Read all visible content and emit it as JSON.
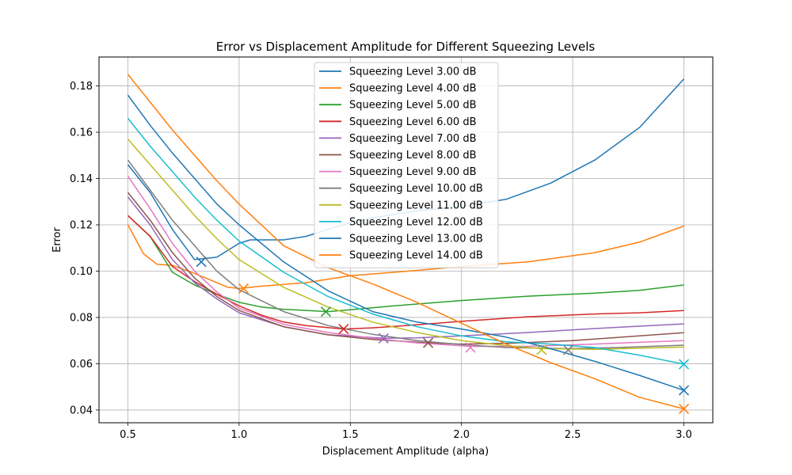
{
  "chart_data": {
    "type": "line",
    "title": "Error vs Displacement Amplitude for Different Squeezing Levels",
    "xlabel": "Displacement Amplitude (alpha)",
    "ylabel": "Error",
    "xlim": [
      0.37,
      3.13
    ],
    "ylim": [
      0.0345,
      0.1925
    ],
    "xticks": [
      "0.5",
      "1.0",
      "1.5",
      "2.0",
      "2.5",
      "3.0"
    ],
    "yticks": [
      "0.04",
      "0.06",
      "0.08",
      "0.10",
      "0.12",
      "0.14",
      "0.16",
      "0.18"
    ],
    "grid": true,
    "legend_position": "upper center",
    "marker": "x at minimum error",
    "series": [
      {
        "name": "Squeezing Level 3.00 dB",
        "color": "#1f77b4",
        "x": [
          0.5,
          0.6,
          0.7,
          0.8,
          0.9,
          1.0,
          1.05,
          1.1,
          1.2,
          1.3,
          1.4,
          1.5,
          1.6,
          1.8,
          2.0,
          2.2,
          2.4,
          2.6,
          2.8,
          3.0
        ],
        "y": [
          0.146,
          0.134,
          0.118,
          0.105,
          0.106,
          0.112,
          0.1135,
          0.1135,
          0.1135,
          0.115,
          0.118,
          0.121,
          0.123,
          0.126,
          0.128,
          0.131,
          0.138,
          0.148,
          0.162,
          0.183
        ],
        "min": [
          0.83,
          0.104
        ]
      },
      {
        "name": "Squeezing Level 4.00 dB",
        "color": "#ff7f0e",
        "x": [
          0.5,
          0.57,
          0.63,
          0.7,
          0.8,
          0.9,
          0.95,
          1.0,
          1.1,
          1.3,
          1.5,
          1.7,
          2.0,
          2.3,
          2.6,
          2.8,
          3.0
        ],
        "y": [
          0.12,
          0.1075,
          0.103,
          0.1025,
          0.099,
          0.095,
          0.093,
          0.0925,
          0.0935,
          0.095,
          0.098,
          0.0995,
          0.102,
          0.104,
          0.108,
          0.1125,
          0.1195
        ],
        "min": [
          1.02,
          0.0925
        ]
      },
      {
        "name": "Squeezing Level 5.00 dB",
        "color": "#2ca02c",
        "x": [
          0.5,
          0.6,
          0.7,
          0.8,
          0.9,
          1.0,
          1.1,
          1.2,
          1.4,
          1.5,
          1.7,
          2.0,
          2.3,
          2.6,
          2.8,
          3.0
        ],
        "y": [
          0.124,
          0.115,
          0.0995,
          0.094,
          0.09,
          0.0865,
          0.0845,
          0.0835,
          0.0825,
          0.0833,
          0.085,
          0.0873,
          0.0892,
          0.0905,
          0.0917,
          0.094
        ],
        "min": [
          1.39,
          0.0825
        ]
      },
      {
        "name": "Squeezing Level 6.00 dB",
        "color": "#d62728",
        "x": [
          0.5,
          0.6,
          0.7,
          0.8,
          0.9,
          1.0,
          1.1,
          1.2,
          1.3,
          1.47,
          1.6,
          1.8,
          2.0,
          2.3,
          2.6,
          2.8,
          3.0
        ],
        "y": [
          0.124,
          0.115,
          0.102,
          0.0955,
          0.09,
          0.085,
          0.081,
          0.078,
          0.0765,
          0.075,
          0.0755,
          0.0768,
          0.0783,
          0.0803,
          0.0815,
          0.082,
          0.083
        ],
        "min": [
          1.47,
          0.075
        ]
      },
      {
        "name": "Squeezing Level 7.00 dB",
        "color": "#9467bd",
        "x": [
          0.5,
          0.6,
          0.7,
          0.8,
          0.9,
          1.0,
          1.2,
          1.4,
          1.65,
          1.8,
          2.0,
          2.3,
          2.6,
          3.0
        ],
        "y": [
          0.132,
          0.12,
          0.105,
          0.095,
          0.088,
          0.082,
          0.076,
          0.0725,
          0.071,
          0.0712,
          0.072,
          0.0735,
          0.0752,
          0.0772
        ],
        "min": [
          1.65,
          0.071
        ]
      },
      {
        "name": "Squeezing Level 8.00 dB",
        "color": "#8c564b",
        "x": [
          0.5,
          0.6,
          0.7,
          0.8,
          0.9,
          1.0,
          1.2,
          1.4,
          1.6,
          1.85,
          2.0,
          2.2,
          2.5,
          2.8,
          3.0
        ],
        "y": [
          0.134,
          0.122,
          0.108,
          0.097,
          0.089,
          0.083,
          0.076,
          0.0725,
          0.0705,
          0.069,
          0.0685,
          0.0688,
          0.07,
          0.072,
          0.0734
        ],
        "min": [
          1.85,
          0.069
        ]
      },
      {
        "name": "Squeezing Level 9.00 dB",
        "color": "#e377c2",
        "x": [
          0.5,
          0.6,
          0.7,
          0.8,
          0.9,
          1.0,
          1.2,
          1.4,
          1.6,
          1.8,
          2.04,
          2.3,
          2.6,
          3.0
        ],
        "y": [
          0.141,
          0.127,
          0.112,
          0.1,
          0.091,
          0.084,
          0.077,
          0.0735,
          0.071,
          0.069,
          0.0675,
          0.0675,
          0.0685,
          0.07
        ],
        "min": [
          2.04,
          0.067
        ]
      },
      {
        "name": "Squeezing Level 10.00 dB",
        "color": "#7f7f7f",
        "x": [
          0.5,
          0.6,
          0.7,
          0.8,
          0.9,
          1.0,
          1.2,
          1.4,
          1.6,
          1.8,
          2.0,
          2.2,
          2.48,
          2.7,
          3.0
        ],
        "y": [
          0.148,
          0.135,
          0.122,
          0.111,
          0.1,
          0.092,
          0.0825,
          0.0765,
          0.0727,
          0.07,
          0.0683,
          0.067,
          0.0665,
          0.067,
          0.068
        ],
        "min": [
          2.48,
          0.066
        ]
      },
      {
        "name": "Squeezing Level 11.00 dB",
        "color": "#bcbd22",
        "x": [
          0.5,
          0.6,
          0.7,
          0.8,
          0.9,
          1.0,
          1.2,
          1.4,
          1.6,
          1.8,
          2.0,
          2.2,
          2.36,
          2.6,
          3.0
        ],
        "y": [
          0.157,
          0.146,
          0.135,
          0.124,
          0.114,
          0.105,
          0.093,
          0.0845,
          0.078,
          0.0735,
          0.07,
          0.0678,
          0.0665,
          0.0662,
          0.0672
        ],
        "min": [
          2.36,
          0.066
        ]
      },
      {
        "name": "Squeezing Level 12.00 dB",
        "color": "#17becf",
        "x": [
          0.5,
          0.6,
          0.7,
          0.8,
          0.9,
          1.0,
          1.2,
          1.4,
          1.6,
          1.8,
          2.0,
          2.2,
          2.4,
          2.6,
          2.8,
          3.0
        ],
        "y": [
          0.166,
          0.154,
          0.143,
          0.132,
          0.122,
          0.113,
          0.0995,
          0.089,
          0.0815,
          0.076,
          0.072,
          0.0695,
          0.0685,
          0.067,
          0.0637,
          0.0598
        ],
        "min": [
          3.0,
          0.0598
        ]
      },
      {
        "name": "Squeezing Level 13.00 dB",
        "color": "#1f77b4",
        "x": [
          0.5,
          0.6,
          0.7,
          0.8,
          0.9,
          1.0,
          1.2,
          1.4,
          1.6,
          1.8,
          2.0,
          2.2,
          2.4,
          2.6,
          2.8,
          3.0
        ],
        "y": [
          0.176,
          0.163,
          0.151,
          0.14,
          0.129,
          0.12,
          0.104,
          0.0915,
          0.0825,
          0.078,
          0.075,
          0.0715,
          0.0665,
          0.061,
          0.055,
          0.0485
        ],
        "min": [
          3.0,
          0.0485
        ]
      },
      {
        "name": "Squeezing Level 14.00 dB",
        "color": "#ff7f0e",
        "x": [
          0.5,
          0.6,
          0.7,
          0.8,
          0.9,
          1.0,
          1.2,
          1.4,
          1.6,
          1.8,
          2.0,
          2.2,
          2.4,
          2.6,
          2.8,
          3.0
        ],
        "y": [
          0.185,
          0.173,
          0.161,
          0.15,
          0.139,
          0.129,
          0.111,
          0.1015,
          0.0945,
          0.0865,
          0.0775,
          0.0685,
          0.0605,
          0.0535,
          0.0455,
          0.0405
        ],
        "min": [
          3.0,
          0.0405
        ]
      }
    ]
  }
}
